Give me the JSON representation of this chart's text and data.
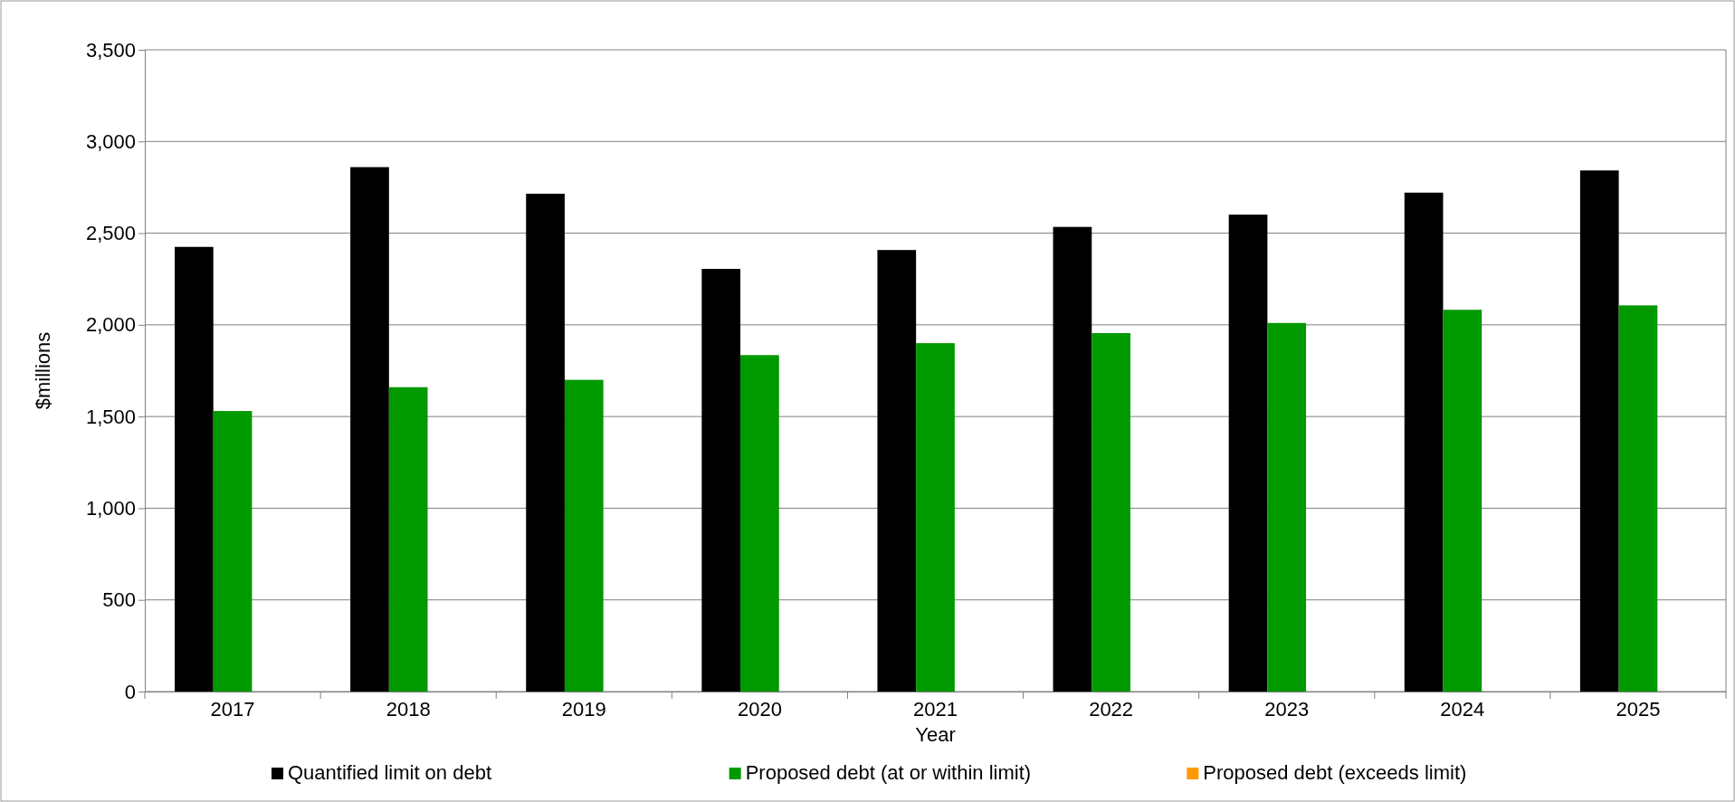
{
  "chart_data": {
    "type": "bar",
    "xlabel": "Year",
    "ylabel": "$millions",
    "categories": [
      "2017",
      "2018",
      "2019",
      "2020",
      "2021",
      "2022",
      "2023",
      "2024",
      "2025"
    ],
    "series": [
      {
        "name": "Quantified limit on debt",
        "color": "#000000",
        "values": [
          2425,
          2860,
          2715,
          2305,
          2408,
          2534,
          2601,
          2721,
          2842
        ]
      },
      {
        "name": "Proposed debt (at or within limit)",
        "color": "#009900",
        "values": [
          1530,
          1660,
          1700,
          1835,
          1900,
          1955,
          2010,
          2082,
          2106
        ]
      },
      {
        "name": "Proposed debt (exceeds limit)",
        "color": "#ff9900",
        "values": [
          null,
          null,
          null,
          null,
          null,
          null,
          null,
          null,
          null
        ]
      }
    ],
    "ylim": [
      0,
      3500
    ],
    "yticks": [
      {
        "value": 0,
        "label": "0"
      },
      {
        "value": 500,
        "label": "500"
      },
      {
        "value": 1000,
        "label": "1,000"
      },
      {
        "value": 1500,
        "label": "1,500"
      },
      {
        "value": 2000,
        "label": "2,000"
      },
      {
        "value": 2500,
        "label": "2,500"
      },
      {
        "value": 3000,
        "label": "3,000"
      },
      {
        "value": 3500,
        "label": "3,500"
      }
    ],
    "grid": "y",
    "legend": "bottom"
  }
}
